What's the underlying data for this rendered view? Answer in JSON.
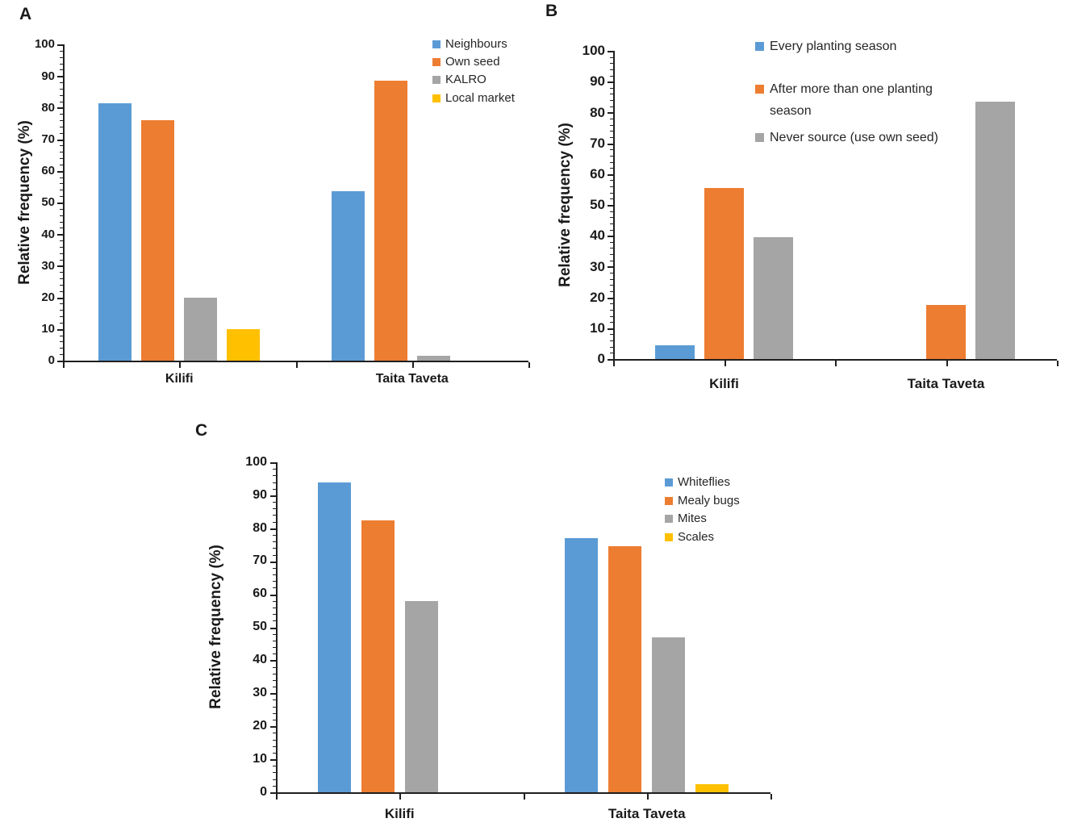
{
  "figure_background": "#ffffff",
  "axis_color": "#1f1f1f",
  "text_color": "#262626",
  "chart_data": [
    {
      "panel_label": "A",
      "type": "bar",
      "title": "",
      "xlabel": "",
      "ylabel": "Relative frequency (%)",
      "ylim": [
        0,
        100
      ],
      "ytick_step": 10,
      "yminor_step": 2,
      "grid": false,
      "legend_position": "inside-top-right",
      "categories": [
        "Kilifi",
        "Taita Taveta"
      ],
      "series": [
        {
          "name": "Neighbours",
          "color": "#5B9BD5",
          "values": [
            81.5,
            53.5
          ]
        },
        {
          "name": "Own seed",
          "color": "#ED7D31",
          "values": [
            76,
            88.5
          ]
        },
        {
          "name": "KALRO",
          "color": "#A5A5A5",
          "values": [
            20,
            1.5
          ]
        },
        {
          "name": "Local market",
          "color": "#FFC000",
          "values": [
            10,
            0
          ]
        }
      ]
    },
    {
      "panel_label": "B",
      "type": "bar",
      "title": "",
      "xlabel": "",
      "ylabel": "Relative frequency (%)",
      "ylim": [
        0,
        100
      ],
      "ytick_step": 10,
      "yminor_step": 2,
      "grid": false,
      "legend_position": "inside-top",
      "categories": [
        "Kilifi",
        "Taita Taveta"
      ],
      "series": [
        {
          "name": "Every planting season",
          "color": "#5B9BD5",
          "values": [
            4.5,
            0
          ]
        },
        {
          "name": "After more than one planting season",
          "color": "#ED7D31",
          "values": [
            55.5,
            17.5
          ]
        },
        {
          "name": "Never source (use own seed)",
          "color": "#A5A5A5",
          "values": [
            39.5,
            83.5
          ]
        }
      ]
    },
    {
      "panel_label": "C",
      "type": "bar",
      "title": "",
      "xlabel": "",
      "ylabel": "Relative frequency (%)",
      "ylim": [
        0,
        100
      ],
      "ytick_step": 10,
      "yminor_step": 2,
      "grid": false,
      "legend_position": "inside-right",
      "categories": [
        "Kilifi",
        "Taita Taveta"
      ],
      "series": [
        {
          "name": "Whiteflies",
          "color": "#5B9BD5",
          "values": [
            94,
            77
          ]
        },
        {
          "name": "Mealy bugs",
          "color": "#ED7D31",
          "values": [
            82.5,
            74.5
          ]
        },
        {
          "name": "Mites",
          "color": "#A5A5A5",
          "values": [
            58,
            47
          ]
        },
        {
          "name": "Scales",
          "color": "#FFC000",
          "values": [
            0,
            2.5
          ]
        }
      ]
    }
  ]
}
